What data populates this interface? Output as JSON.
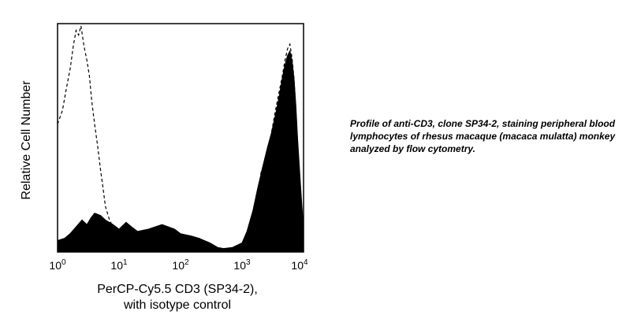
{
  "chart_data": {
    "type": "area",
    "xscale": "log",
    "xlim": [
      1,
      10000
    ],
    "ylim": [
      0,
      100
    ],
    "xlabel_line1": "PerCP-Cy5.5 CD3 (SP34-2),",
    "xlabel_line2": "with isotype control",
    "ylabel": "Relative Cell Number",
    "xticks": [
      {
        "base": "10",
        "exp": "0",
        "value": 1
      },
      {
        "base": "10",
        "exp": "1",
        "value": 10
      },
      {
        "base": "10",
        "exp": "2",
        "value": 100
      },
      {
        "base": "10",
        "exp": "3",
        "value": 1000
      },
      {
        "base": "10",
        "exp": "4",
        "value": 10000
      }
    ],
    "grid": false,
    "series": [
      {
        "style": "filled-black",
        "x": [
          1,
          1.3,
          1.6,
          2,
          2.5,
          3,
          3.5,
          4,
          5,
          6,
          8,
          10,
          13,
          16,
          20,
          30,
          50,
          80,
          100,
          150,
          200,
          300,
          400,
          500,
          700,
          1000,
          1200,
          1500,
          1800,
          2200,
          2600,
          3000,
          3500,
          4000,
          4500,
          5000,
          5500,
          6000,
          6500,
          7000,
          7500,
          8000,
          9000,
          10000
        ],
        "y": [
          5,
          6,
          8,
          11,
          14,
          12,
          15,
          17,
          16,
          14,
          12,
          10,
          13,
          11,
          9,
          10,
          12,
          10,
          8,
          7,
          6,
          4,
          2,
          1.5,
          2,
          4,
          9,
          18,
          28,
          38,
          46,
          52,
          60,
          68,
          76,
          82,
          86,
          88,
          84,
          76,
          64,
          50,
          28,
          10
        ]
      },
      {
        "style": "dashed",
        "x": [
          1,
          1.2,
          1.4,
          1.6,
          1.8,
          2,
          2.2,
          2.4,
          2.7,
          3,
          3.3,
          3.6,
          4,
          4.5,
          5,
          5.5,
          6,
          7,
          8,
          10,
          13,
          16,
          20,
          30,
          40
        ],
        "y": [
          56,
          62,
          72,
          80,
          90,
          97,
          95,
          99,
          90,
          84,
          77,
          66,
          56,
          46,
          36,
          28,
          20,
          14,
          11,
          9,
          7,
          6,
          5,
          4,
          3
        ]
      },
      {
        "style": "dashed",
        "x": [
          2000,
          2600,
          3000,
          3500,
          4000,
          4500,
          5000,
          5500,
          6000,
          6500,
          7000,
          7500,
          8000,
          9000,
          10000
        ],
        "y": [
          34,
          44,
          52,
          62,
          70,
          77,
          84,
          89,
          91,
          85,
          76,
          62,
          48,
          24,
          8
        ]
      }
    ]
  },
  "caption": "Profile of anti-CD3, clone SP34-2, staining peripheral blood lymphocytes of rhesus macaque (macaca mulatta) monkey analyzed by flow cytometry."
}
